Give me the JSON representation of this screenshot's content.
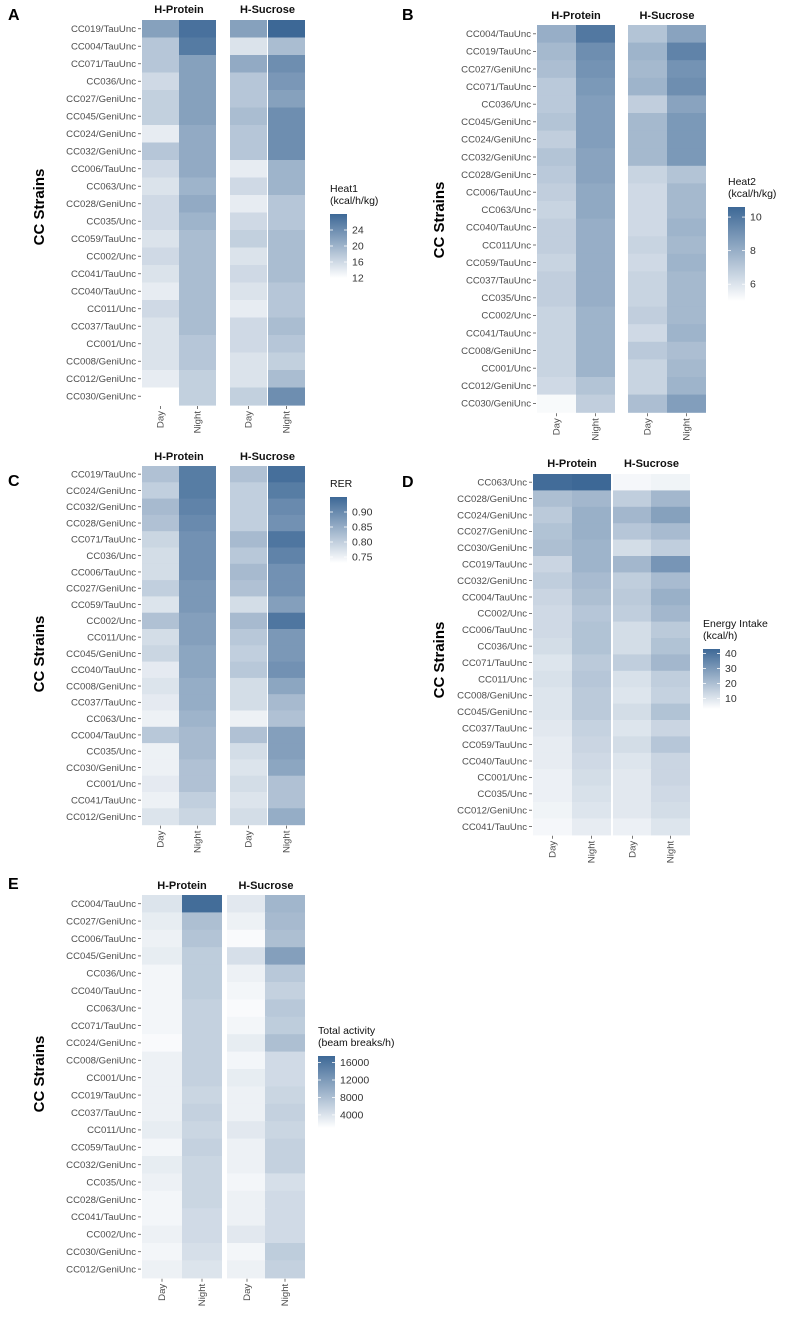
{
  "chart_data": [
    {
      "panel": "A",
      "type": "heatmap",
      "ylabel": "CC Strains",
      "facets": [
        "H-Protein",
        "H-Sucrose"
      ],
      "columns": [
        "Day",
        "Night"
      ],
      "rows": [
        "CC019/TauUnc",
        "CC004/TauUnc",
        "CC071/TauUnc",
        "CC036/Unc",
        "CC027/GeniUnc",
        "CC045/GeniUnc",
        "CC024/GeniUnc",
        "CC032/GeniUnc",
        "CC006/TauUnc",
        "CC063/Unc",
        "CC028/GeniUnc",
        "CC035/Unc",
        "CC059/TauUnc",
        "CC002/Unc",
        "CC041/TauUnc",
        "CC040/TauUnc",
        "CC011/Unc",
        "CC037/TauUnc",
        "CC001/Unc",
        "CC008/GeniUnc",
        "CC012/GeniUnc",
        "CC030/GeniUnc"
      ],
      "values": [
        [
          22,
          27,
          22,
          29
        ],
        [
          18,
          26,
          15,
          19
        ],
        [
          18,
          22,
          21,
          24
        ],
        [
          16,
          22,
          18,
          23
        ],
        [
          17,
          22,
          18,
          22
        ],
        [
          17,
          22,
          19,
          24
        ],
        [
          14,
          21,
          18,
          24
        ],
        [
          18,
          21,
          18,
          24
        ],
        [
          16,
          21,
          14,
          20
        ],
        [
          15,
          20,
          16,
          20
        ],
        [
          16,
          21,
          14,
          18
        ],
        [
          16,
          20,
          16,
          18
        ],
        [
          15,
          19,
          17,
          19
        ],
        [
          16,
          19,
          15,
          19
        ],
        [
          15,
          19,
          16,
          19
        ],
        [
          14,
          19,
          15,
          18
        ],
        [
          16,
          19,
          14,
          18
        ],
        [
          15,
          19,
          16,
          19
        ],
        [
          15,
          18,
          16,
          18
        ],
        [
          15,
          18,
          15,
          17
        ],
        [
          14,
          17,
          15,
          19
        ],
        [
          12,
          17,
          17,
          24
        ]
      ],
      "legend": {
        "title": "Heat1\n(kcal/h/kg)",
        "ticks": [
          12,
          16,
          20,
          24
        ],
        "min": 12,
        "max": 28
      }
    },
    {
      "panel": "B",
      "type": "heatmap",
      "ylabel": "CC Strains",
      "facets": [
        "H-Protein",
        "H-Sucrose"
      ],
      "columns": [
        "Day",
        "Night"
      ],
      "rows": [
        "CC004/TauUnc",
        "CC019/TauUnc",
        "CC027/GeniUnc",
        "CC071/TauUnc",
        "CC036/Unc",
        "CC045/GeniUnc",
        "CC024/GeniUnc",
        "CC032/GeniUnc",
        "CC028/GeniUnc",
        "CC006/TauUnc",
        "CC063/Unc",
        "CC040/TauUnc",
        "CC011/Unc",
        "CC059/TauUnc",
        "CC037/TauUnc",
        "CC035/Unc",
        "CC002/Unc",
        "CC041/TauUnc",
        "CC008/GeniUnc",
        "CC001/Unc",
        "CC012/GeniUnc",
        "CC030/GeniUnc"
      ],
      "values": [
        [
          8.0,
          10.0,
          7.2,
          8.4
        ],
        [
          7.6,
          9.2,
          7.8,
          9.6
        ],
        [
          7.4,
          9.0,
          7.6,
          9.0
        ],
        [
          7.0,
          8.8,
          7.8,
          9.2
        ],
        [
          7.0,
          8.6,
          6.8,
          8.4
        ],
        [
          7.2,
          8.6,
          7.6,
          8.8
        ],
        [
          6.8,
          8.6,
          7.6,
          8.8
        ],
        [
          7.2,
          8.4,
          7.6,
          8.8
        ],
        [
          7.0,
          8.4,
          6.6,
          7.2
        ],
        [
          6.8,
          8.2,
          6.4,
          7.6
        ],
        [
          6.6,
          8.2,
          6.4,
          7.6
        ],
        [
          6.8,
          8.0,
          6.4,
          7.8
        ],
        [
          6.8,
          8.0,
          6.6,
          7.6
        ],
        [
          6.6,
          8.0,
          6.4,
          7.8
        ],
        [
          6.8,
          8.0,
          6.6,
          7.6
        ],
        [
          6.8,
          8.0,
          6.6,
          7.6
        ],
        [
          6.6,
          7.8,
          6.8,
          7.6
        ],
        [
          6.6,
          7.8,
          6.4,
          7.8
        ],
        [
          6.6,
          7.8,
          7.0,
          7.4
        ],
        [
          6.6,
          7.8,
          6.6,
          7.6
        ],
        [
          6.4,
          7.2,
          6.6,
          7.8
        ],
        [
          5.2,
          6.8,
          7.4,
          8.6
        ]
      ],
      "legend": {
        "title": "Heat2\n(kcal/h/kg)",
        "ticks": [
          6,
          8,
          10
        ],
        "min": 5,
        "max": 10.6
      }
    },
    {
      "panel": "C",
      "type": "heatmap",
      "ylabel": "CC Strains",
      "facets": [
        "H-Protein",
        "H-Sucrose"
      ],
      "columns": [
        "Day",
        "Night"
      ],
      "rows": [
        "CC019/TauUnc",
        "CC024/GeniUnc",
        "CC032/GeniUnc",
        "CC028/GeniUnc",
        "CC071/TauUnc",
        "CC036/Unc",
        "CC006/TauUnc",
        "CC027/GeniUnc",
        "CC059/TauUnc",
        "CC002/Unc",
        "CC011/Unc",
        "CC045/GeniUnc",
        "CC040/TauUnc",
        "CC008/GeniUnc",
        "CC037/TauUnc",
        "CC063/Unc",
        "CC004/TauUnc",
        "CC035/Unc",
        "CC030/GeniUnc",
        "CC001/Unc",
        "CC041/TauUnc",
        "CC012/GeniUnc"
      ],
      "values": [
        [
          0.82,
          0.92,
          0.82,
          0.94
        ],
        [
          0.8,
          0.92,
          0.8,
          0.92
        ],
        [
          0.83,
          0.91,
          0.8,
          0.9
        ],
        [
          0.82,
          0.9,
          0.8,
          0.89
        ],
        [
          0.79,
          0.89,
          0.83,
          0.93
        ],
        [
          0.78,
          0.89,
          0.81,
          0.91
        ],
        [
          0.78,
          0.89,
          0.83,
          0.89
        ],
        [
          0.8,
          0.88,
          0.82,
          0.89
        ],
        [
          0.77,
          0.88,
          0.78,
          0.87
        ],
        [
          0.82,
          0.87,
          0.83,
          0.93
        ],
        [
          0.78,
          0.87,
          0.81,
          0.88
        ],
        [
          0.79,
          0.86,
          0.8,
          0.88
        ],
        [
          0.76,
          0.86,
          0.81,
          0.89
        ],
        [
          0.77,
          0.85,
          0.78,
          0.86
        ],
        [
          0.76,
          0.85,
          0.78,
          0.83
        ],
        [
          0.75,
          0.84,
          0.75,
          0.82
        ],
        [
          0.81,
          0.83,
          0.82,
          0.87
        ],
        [
          0.75,
          0.83,
          0.78,
          0.87
        ],
        [
          0.75,
          0.82,
          0.77,
          0.86
        ],
        [
          0.76,
          0.82,
          0.78,
          0.82
        ],
        [
          0.75,
          0.8,
          0.77,
          0.82
        ],
        [
          0.77,
          0.79,
          0.78,
          0.85
        ]
      ],
      "legend": {
        "title": "RER",
        "ticks": [
          0.75,
          0.8,
          0.85,
          0.9
        ],
        "min": 0.73,
        "max": 0.95
      }
    },
    {
      "panel": "D",
      "type": "heatmap",
      "ylabel": "CC Strains",
      "facets": [
        "H-Protein",
        "H-Sucrose"
      ],
      "columns": [
        "Day",
        "Night"
      ],
      "rows": [
        "CC063/Unc",
        "CC028/GeniUnc",
        "CC024/GeniUnc",
        "CC027/GeniUnc",
        "CC030/GeniUnc",
        "CC019/TauUnc",
        "CC032/GeniUnc",
        "CC004/TauUnc",
        "CC002/Unc",
        "CC006/TauUnc",
        "CC036/Unc",
        "CC071/TauUnc",
        "CC011/Unc",
        "CC008/GeniUnc",
        "CC045/GeniUnc",
        "CC037/TauUnc",
        "CC059/TauUnc",
        "CC040/TauUnc",
        "CC001/Unc",
        "CC035/Unc",
        "CC012/GeniUnc",
        "CC041/TauUnc"
      ],
      "values": [
        [
          42,
          43,
          5,
          6
        ],
        [
          20,
          22,
          16,
          22
        ],
        [
          17,
          24,
          22,
          28
        ],
        [
          19,
          24,
          18,
          21
        ],
        [
          20,
          23,
          12,
          16
        ],
        [
          14,
          23,
          22,
          31
        ],
        [
          16,
          21,
          16,
          21
        ],
        [
          14,
          20,
          17,
          24
        ],
        [
          13,
          18,
          16,
          22
        ],
        [
          13,
          19,
          12,
          17
        ],
        [
          12,
          19,
          12,
          19
        ],
        [
          10,
          17,
          16,
          22
        ],
        [
          11,
          18,
          11,
          16
        ],
        [
          10,
          17,
          10,
          15
        ],
        [
          10,
          17,
          12,
          19
        ],
        [
          9,
          15,
          10,
          14
        ],
        [
          8,
          14,
          12,
          18
        ],
        [
          8,
          13,
          10,
          14
        ],
        [
          7,
          12,
          9,
          14
        ],
        [
          7,
          11,
          9,
          13
        ],
        [
          6,
          10,
          9,
          12
        ],
        [
          5,
          8,
          7,
          10
        ]
      ],
      "legend": {
        "title": "Energy Intake\n(kcal/h)",
        "ticks": [
          10,
          20,
          30,
          40
        ],
        "min": 3,
        "max": 43
      }
    },
    {
      "panel": "E",
      "type": "heatmap",
      "ylabel": "CC Strains",
      "facets": [
        "H-Protein",
        "H-Sucrose"
      ],
      "columns": [
        "Day",
        "Night"
      ],
      "rows": [
        "CC004/TauUnc",
        "CC027/GeniUnc",
        "CC006/TauUnc",
        "CC045/GeniUnc",
        "CC036/Unc",
        "CC040/TauUnc",
        "CC063/Unc",
        "CC071/TauUnc",
        "CC024/GeniUnc",
        "CC008/GeniUnc",
        "CC001/Unc",
        "CC019/TauUnc",
        "CC037/TauUnc",
        "CC011/Unc",
        "CC059/TauUnc",
        "CC032/GeniUnc",
        "CC035/Unc",
        "CC028/GeniUnc",
        "CC041/TauUnc",
        "CC002/Unc",
        "CC030/GeniUnc",
        "CC012/GeniUnc"
      ],
      "values": [
        [
          4000,
          17000,
          3500,
          9000
        ],
        [
          3000,
          8000,
          2500,
          8500
        ],
        [
          2500,
          7500,
          1500,
          8000
        ],
        [
          3000,
          6500,
          4500,
          11500
        ],
        [
          2000,
          6500,
          2500,
          7000
        ],
        [
          2000,
          6500,
          2000,
          6000
        ],
        [
          2000,
          6000,
          1500,
          7000
        ],
        [
          2000,
          6000,
          2000,
          6500
        ],
        [
          1500,
          6000,
          3000,
          8000
        ],
        [
          2500,
          6000,
          2000,
          5000
        ],
        [
          2500,
          6000,
          3000,
          5000
        ],
        [
          2500,
          5500,
          2500,
          5500
        ],
        [
          2500,
          6000,
          2500,
          6000
        ],
        [
          3000,
          5500,
          3500,
          5500
        ],
        [
          2000,
          6000,
          2500,
          6000
        ],
        [
          3000,
          5500,
          2500,
          6000
        ],
        [
          2500,
          5500,
          2000,
          4500
        ],
        [
          2000,
          5500,
          2500,
          5000
        ],
        [
          2000,
          5000,
          2500,
          5000
        ],
        [
          2500,
          5000,
          3500,
          5000
        ],
        [
          2000,
          4500,
          2000,
          6500
        ],
        [
          2500,
          4000,
          2500,
          6000
        ]
      ],
      "legend": {
        "title": "Total activity\n(beam breaks/h)",
        "ticks": [
          4000,
          8000,
          12000,
          16000
        ],
        "min": 1000,
        "max": 17500
      }
    }
  ]
}
